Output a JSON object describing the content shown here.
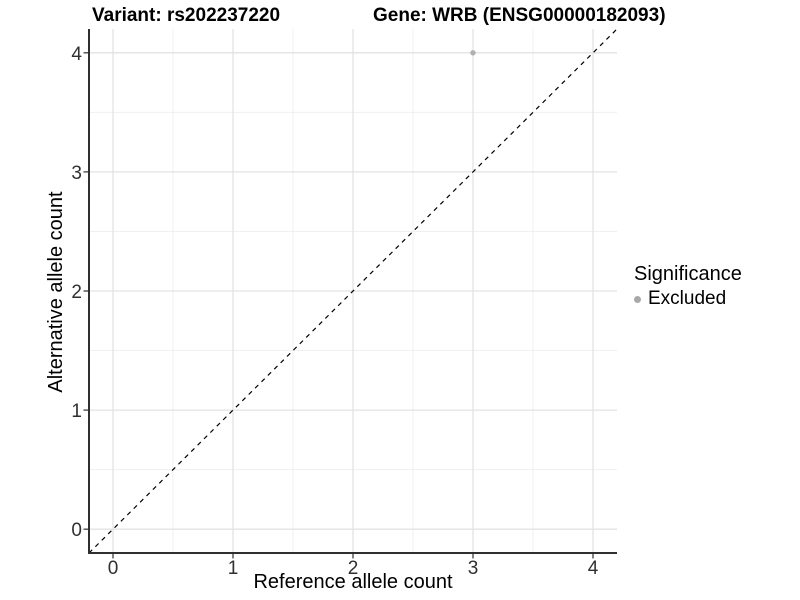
{
  "chart_data": {
    "type": "scatter",
    "title_left": "Variant: rs202237220",
    "title_right": "Gene: WRB (ENSG00000182093)",
    "xlabel": "Reference allele count",
    "ylabel": "Alternative allele count",
    "xlim": [
      -0.2,
      4.2
    ],
    "ylim": [
      -0.2,
      4.2
    ],
    "xticks": [
      0,
      1,
      2,
      3,
      4
    ],
    "yticks": [
      0,
      1,
      2,
      3,
      4
    ],
    "grid": {
      "major": true,
      "minor": true,
      "major_color": "#e3e3e3",
      "minor_color": "#f0f0f0"
    },
    "axis": {
      "line_color": "#2f2f2f",
      "tick_color": "#2f2f2f",
      "tick_label_color": "#303030"
    },
    "identity_line": {
      "from": [
        -0.2,
        -0.2
      ],
      "to": [
        4.2,
        4.2
      ],
      "style": "dashed",
      "color": "#000000"
    },
    "series": [
      {
        "name": "Excluded",
        "color": "#b0b0b0",
        "marker": "circle",
        "points": [
          [
            3,
            4
          ]
        ]
      }
    ],
    "legend": {
      "title": "Significance",
      "position": "right",
      "entries": [
        {
          "label": "Excluded",
          "color": "#a8a8a8",
          "marker": "circle"
        }
      ]
    }
  }
}
